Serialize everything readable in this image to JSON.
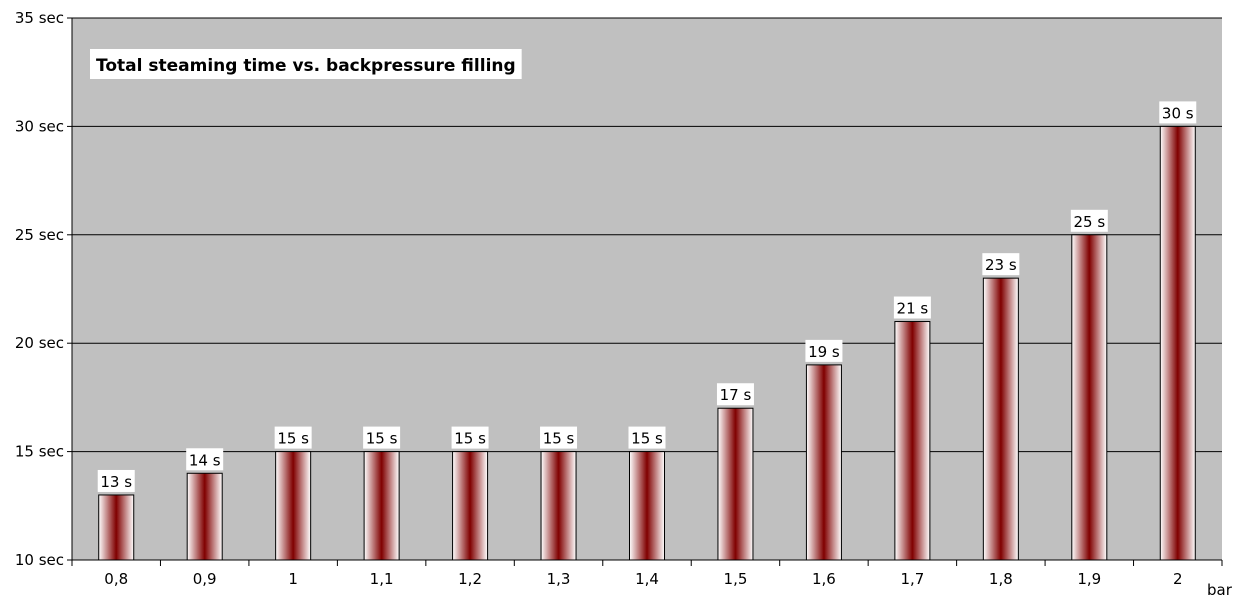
{
  "chart_data": {
    "type": "bar",
    "title": "Total steaming time vs. backpressure filling",
    "xlabel": "bar",
    "ylabel": "",
    "categories": [
      "0,8",
      "0,9",
      "1",
      "1,1",
      "1,2",
      "1,3",
      "1,4",
      "1,5",
      "1,6",
      "1,7",
      "1,8",
      "1,9",
      "2"
    ],
    "values": [
      13,
      14,
      15,
      15,
      15,
      15,
      15,
      17,
      19,
      21,
      23,
      25,
      30
    ],
    "data_labels": [
      "13 s",
      "14 s",
      "15 s",
      "15 s",
      "15 s",
      "15 s",
      "15 s",
      "17 s",
      "19 s",
      "21 s",
      "23 s",
      "25 s",
      "30 s"
    ],
    "ylim": [
      10,
      35
    ],
    "yticks": [
      10,
      15,
      20,
      25,
      30,
      35
    ],
    "ytick_labels": [
      "10 sec",
      "15 sec",
      "20 sec",
      "25 sec",
      "30 sec",
      "35 sec"
    ],
    "grid": true,
    "legend": "none",
    "colors": {
      "plot_background": "#c0c0c0",
      "bar_edge": "#ffffff",
      "bar_center": "#800000",
      "bar_outline": "#000000",
      "gridline": "#000000",
      "label_box": "#ffffff"
    }
  }
}
